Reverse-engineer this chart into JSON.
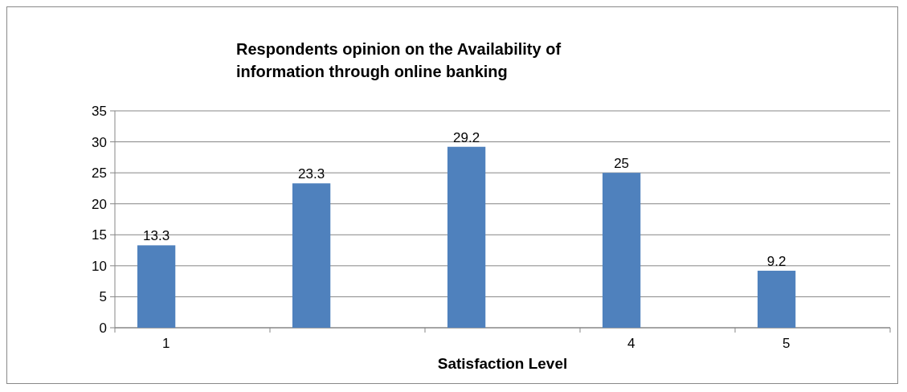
{
  "chart_data": {
    "type": "bar",
    "title": "Respondents opinion on the Availability of information through online banking",
    "xlabel": "Satisfaction Level",
    "categories": [
      "1",
      null,
      null,
      "4",
      "5"
    ],
    "values": [
      13.3,
      23.3,
      29.2,
      25,
      9.2
    ],
    "color": "#4f81bd",
    "ylim": [
      0,
      35
    ],
    "yticks": [
      0,
      5,
      10,
      15,
      20,
      25,
      30,
      35
    ],
    "grid": "y",
    "data_labels": true
  }
}
